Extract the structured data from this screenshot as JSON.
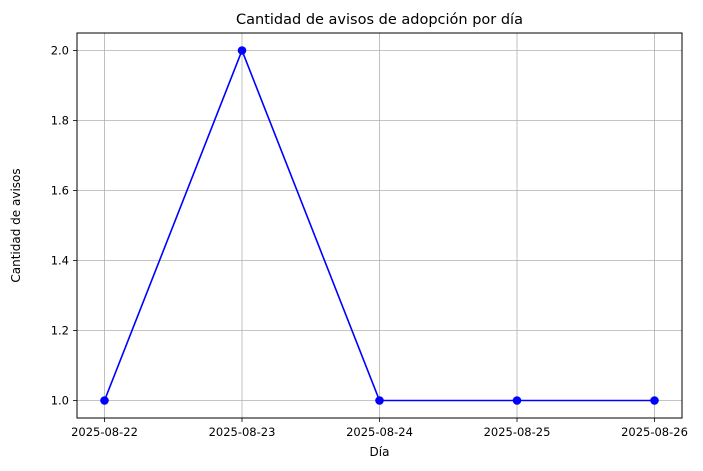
{
  "chart_data": {
    "type": "line",
    "title": "Cantidad de avisos de adopción por día",
    "xlabel": "Día",
    "ylabel": "Cantidad de avisos",
    "x": [
      "2025-08-22",
      "2025-08-23",
      "2025-08-24",
      "2025-08-25",
      "2025-08-26"
    ],
    "series": [
      {
        "values": [
          1,
          2,
          1,
          1,
          1
        ],
        "color": "#0000ff",
        "marker": "circle"
      }
    ],
    "yticks": [
      "1.0",
      "1.2",
      "1.4",
      "1.6",
      "1.8",
      "2.0"
    ],
    "ylim": [
      0.95,
      2.05
    ],
    "grid": true,
    "legend": "none"
  }
}
